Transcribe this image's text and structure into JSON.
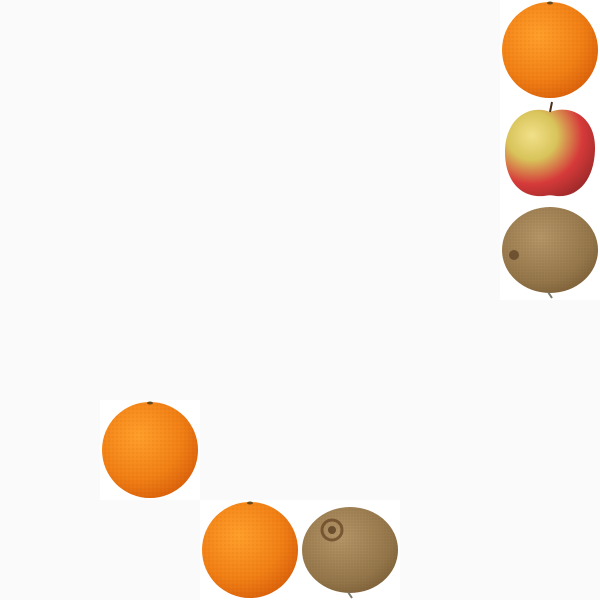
{
  "scene": {
    "background_color": "#fafafa",
    "tile_color": "#ffffff",
    "items": [
      {
        "fruit": "orange"
      },
      {
        "fruit": "apple"
      },
      {
        "fruit": "kiwi"
      },
      {
        "fruit": "orange"
      },
      {
        "fruit": "orange"
      },
      {
        "fruit": "kiwi"
      }
    ],
    "colors": {
      "orange_light": "#ff9f2a",
      "orange_dark": "#d9600a",
      "apple_yellow": "#d8c45a",
      "apple_red": "#d63a3a",
      "kiwi_light": "#b59668",
      "kiwi_dark": "#7a5c36"
    }
  }
}
